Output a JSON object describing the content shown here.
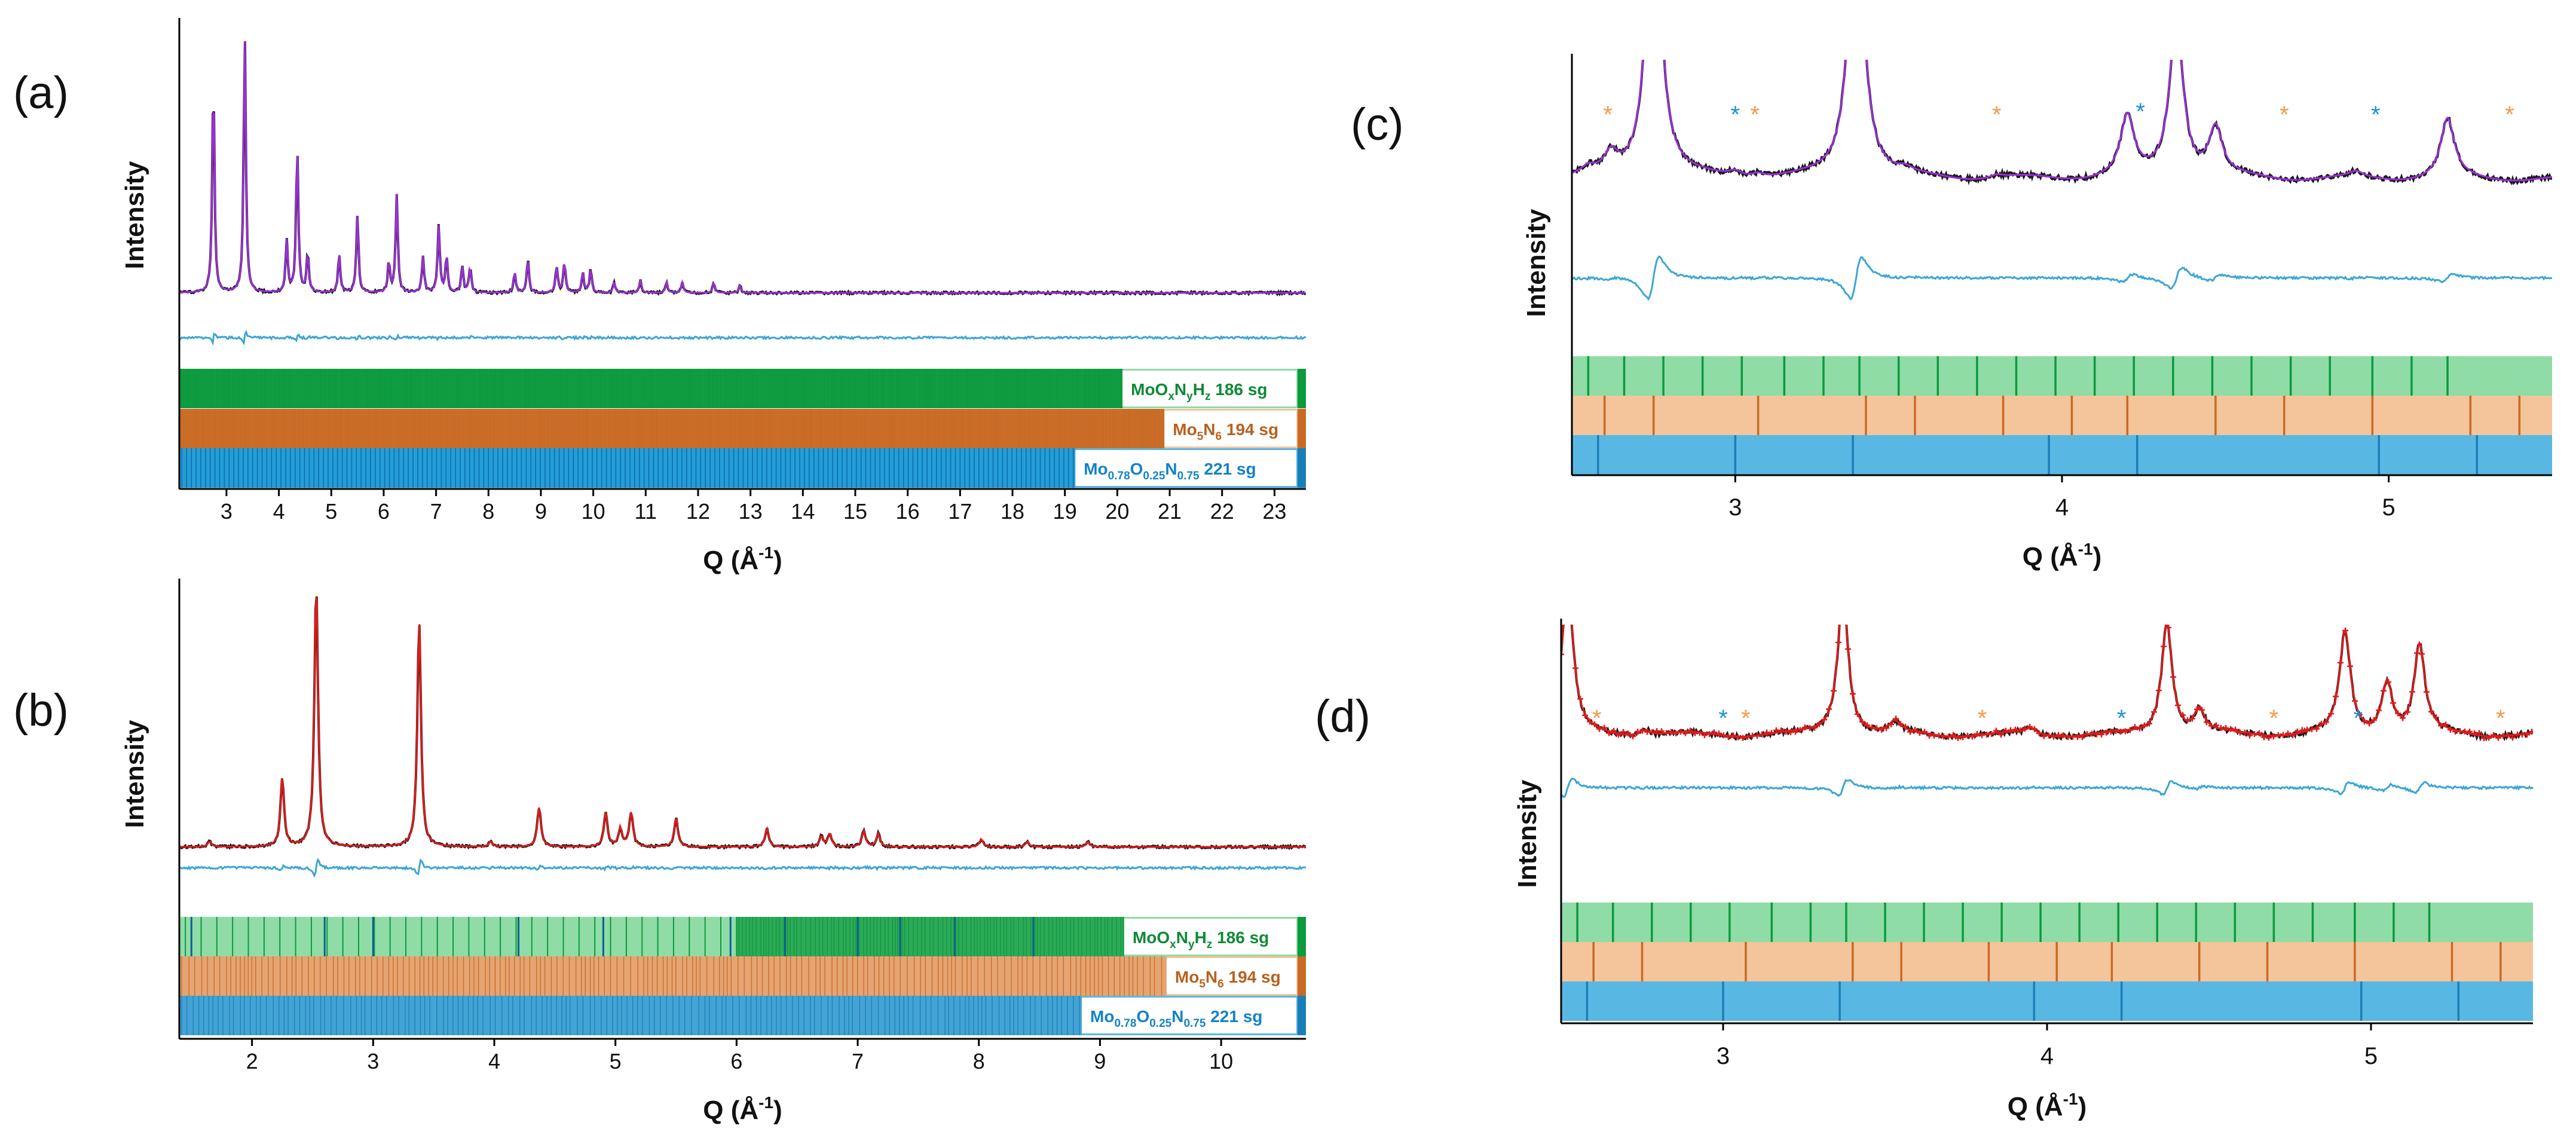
{
  "colors": {
    "black": "#1a1a1a",
    "purple": "#9b30d9",
    "red": "#e01b1b",
    "diff": "#3ba6d4",
    "green_light": "#8fdca6",
    "green_dark": "#0c9a3d",
    "green_text": "#0c8a36",
    "orange_light": "#f4c49b",
    "orange_dark": "#c86a24",
    "orange_text": "#b8601e",
    "blue_light": "#59b7e3",
    "blue_dark": "#1a7fb8",
    "blue_text": "#1482c8",
    "star_orange": "#f29a4a",
    "star_blue": "#1c8fd1"
  },
  "panels": [
    {
      "label": "(a)",
      "ylabel": "Intensity",
      "xlabel": "Q (Å",
      "xlabel_sup": "-1",
      "xlabel_end": ")",
      "xlim": [
        2.1,
        23.6
      ],
      "xticks": [
        "3",
        "4",
        "5",
        "6",
        "7",
        "8",
        "9",
        "10",
        "11",
        "12",
        "13",
        "14",
        "15",
        "16",
        "17",
        "18",
        "19",
        "20",
        "21",
        "22",
        "23"
      ],
      "phases": [
        {
          "name": "MoO",
          "sub1": "x",
          "mid1": "N",
          "sub2": "y",
          "mid2": "H",
          "sub3": "z",
          "tail": " 186 sg",
          "extent": 20.1
        },
        {
          "name": "Mo",
          "sub1": "5",
          "mid1": "N",
          "sub2": "6",
          "mid2": "",
          "sub3": "",
          "tail": " 194 sg",
          "extent": 20.9
        },
        {
          "name": "Mo",
          "sub1": "0.78",
          "mid1": "O",
          "sub2": "0.25",
          "mid2": "N",
          "sub3": "0.75",
          "tail": " 221 sg",
          "extent": 19.2
        }
      ]
    },
    {
      "label": "(b)",
      "ylabel": "Intensity",
      "xlabel": "Q (Å",
      "xlabel_sup": "-1",
      "xlabel_end": ")",
      "xlim": [
        1.4,
        10.7
      ],
      "xticks": [
        "2",
        "3",
        "4",
        "5",
        "6",
        "7",
        "8",
        "9",
        "10"
      ],
      "phases": [
        {
          "name": "MoO",
          "sub1": "x",
          "mid1": "N",
          "sub2": "y",
          "mid2": "H",
          "sub3": "z",
          "tail": " 186 sg",
          "extent": 9.2
        },
        {
          "name": "Mo",
          "sub1": "5",
          "mid1": "N",
          "sub2": "6",
          "mid2": "",
          "sub3": "",
          "tail": " 194 sg",
          "extent": 9.55
        },
        {
          "name": "Mo",
          "sub1": "0.78",
          "mid1": "O",
          "sub2": "0.25",
          "mid2": "N",
          "sub3": "0.75",
          "tail": " 221 sg",
          "extent": 8.85
        }
      ]
    },
    {
      "label": "(c)",
      "ylabel": "Intensity",
      "xlabel": "Q (Å",
      "xlabel_sup": "-1",
      "xlabel_end": ")",
      "xlim": [
        2.5,
        5.5
      ],
      "xticks": [
        "3",
        "4",
        "5"
      ]
    },
    {
      "label": "(d)",
      "ylabel": "Intensity",
      "xlabel": "Q (Å",
      "xlabel_sup": "-1",
      "xlabel_end": ")",
      "xlim": [
        2.5,
        5.5
      ],
      "xticks": [
        "3",
        "4",
        "5"
      ]
    }
  ],
  "chart_data": [
    {
      "type": "line",
      "panel": "(a)",
      "series": [
        {
          "name": "observed",
          "color": "black"
        },
        {
          "name": "calculated",
          "color": "purple"
        },
        {
          "name": "difference",
          "color": "diff"
        }
      ],
      "peaks": [
        [
          2.75,
          0.84
        ],
        [
          3.35,
          1.0
        ],
        [
          4.15,
          0.2
        ],
        [
          4.35,
          0.57
        ],
        [
          4.55,
          0.15
        ],
        [
          5.15,
          0.15
        ],
        [
          5.5,
          0.3
        ],
        [
          6.1,
          0.12
        ],
        [
          6.25,
          0.38
        ],
        [
          6.75,
          0.14
        ],
        [
          7.05,
          0.26
        ],
        [
          7.2,
          0.14
        ],
        [
          7.5,
          0.1
        ],
        [
          7.65,
          0.1
        ],
        [
          8.5,
          0.08
        ],
        [
          8.75,
          0.13
        ],
        [
          9.3,
          0.1
        ],
        [
          9.45,
          0.12
        ],
        [
          9.8,
          0.08
        ],
        [
          9.95,
          0.09
        ],
        [
          10.4,
          0.04
        ],
        [
          10.9,
          0.05
        ],
        [
          11.4,
          0.04
        ],
        [
          11.7,
          0.04
        ],
        [
          12.3,
          0.04
        ],
        [
          12.8,
          0.03
        ]
      ],
      "reflections": {
        "MoOxNyHz": [],
        "Mo5N6": [],
        "Mo0.78O0.25N0.75": [
          3.0,
          3.5,
          4.2,
          4.9,
          5.95,
          6.4,
          7.0,
          7.35,
          7.8,
          8.45,
          8.95,
          9.4,
          9.85,
          10.3,
          10.75
        ]
      }
    },
    {
      "type": "line",
      "panel": "(b)",
      "series": [
        {
          "name": "observed",
          "color": "black"
        },
        {
          "name": "calculated",
          "color": "red"
        },
        {
          "name": "difference",
          "color": "diff"
        }
      ],
      "peaks": [
        [
          1.65,
          0.02
        ],
        [
          2.25,
          0.26
        ],
        [
          2.53,
          1.0
        ],
        [
          3.38,
          0.86
        ],
        [
          3.97,
          0.02
        ],
        [
          4.37,
          0.15
        ],
        [
          4.92,
          0.13
        ],
        [
          5.04,
          0.07
        ],
        [
          5.13,
          0.13
        ],
        [
          5.5,
          0.11
        ],
        [
          6.25,
          0.07
        ],
        [
          6.7,
          0.04
        ],
        [
          6.77,
          0.05
        ],
        [
          7.05,
          0.06
        ],
        [
          7.17,
          0.05
        ],
        [
          8.02,
          0.03
        ],
        [
          8.4,
          0.02
        ],
        [
          8.9,
          0.02
        ]
      ],
      "reflections": {
        "Mo0.78O0.25N0.75": [
          1.5,
          2.6,
          3.0,
          4.2,
          4.9,
          5.95,
          6.4,
          7.0,
          7.35,
          7.8,
          8.45
        ]
      }
    },
    {
      "type": "line",
      "panel": "(c)",
      "series": [
        {
          "name": "observed",
          "color": "black"
        },
        {
          "name": "calculated",
          "color": "purple"
        },
        {
          "name": "difference",
          "color": "diff"
        }
      ],
      "peaks": [
        [
          2.55,
          0.06
        ],
        [
          2.62,
          0.18
        ],
        [
          2.75,
          3.0
        ],
        [
          3.0,
          0.05
        ],
        [
          3.07,
          0.04
        ],
        [
          3.37,
          3.0
        ],
        [
          3.52,
          0.04
        ],
        [
          3.8,
          0.03
        ],
        [
          4.2,
          0.55
        ],
        [
          4.35,
          1.5
        ],
        [
          4.47,
          0.45
        ],
        [
          4.9,
          0.05
        ],
        [
          5.18,
          0.55
        ]
      ],
      "star_orange": [
        2.61,
        3.06,
        3.8,
        4.68,
        5.37
      ],
      "star_blue": [
        3.0,
        4.24,
        4.96
      ],
      "reflections": {
        "green": [
          2.55,
          2.66,
          2.78,
          2.9,
          3.02,
          3.15,
          3.27,
          3.38,
          3.5,
          3.62,
          3.74,
          3.86,
          3.98,
          4.1,
          4.22,
          4.34,
          4.46,
          4.58,
          4.7,
          4.82,
          4.95,
          5.07,
          5.18
        ],
        "orange": [
          2.6,
          2.75,
          3.07,
          3.4,
          3.55,
          3.82,
          4.03,
          4.2,
          4.47,
          4.68,
          4.95,
          5.25,
          5.4
        ],
        "blue": [
          2.58,
          3.0,
          3.36,
          3.96,
          4.23,
          4.97,
          5.27
        ]
      }
    },
    {
      "type": "line",
      "panel": "(d)",
      "series": [
        {
          "name": "observed",
          "color": "black"
        },
        {
          "name": "calculated",
          "color": "red"
        },
        {
          "name": "difference",
          "color": "diff"
        }
      ],
      "peaks": [
        [
          2.52,
          1.3
        ],
        [
          2.76,
          0.05
        ],
        [
          3.37,
          1.2
        ],
        [
          3.53,
          0.09
        ],
        [
          3.95,
          0.05
        ],
        [
          4.37,
          0.95
        ],
        [
          4.47,
          0.2
        ],
        [
          4.92,
          0.85
        ],
        [
          5.05,
          0.44
        ],
        [
          5.15,
          0.74
        ]
      ],
      "star_orange": [
        2.61,
        3.07,
        3.8,
        4.7,
        5.4
      ],
      "star_blue": [
        3.0,
        4.23,
        4.96
      ],
      "reflections": {
        "green": [
          2.55,
          2.66,
          2.78,
          2.9,
          3.02,
          3.15,
          3.27,
          3.38,
          3.5,
          3.62,
          3.74,
          3.86,
          3.98,
          4.1,
          4.22,
          4.34,
          4.46,
          4.58,
          4.7,
          4.82,
          4.95,
          5.07,
          5.18
        ],
        "orange": [
          2.6,
          2.75,
          3.07,
          3.4,
          3.55,
          3.82,
          4.03,
          4.2,
          4.47,
          4.68,
          4.95,
          5.25,
          5.4
        ],
        "blue": [
          2.58,
          3.0,
          3.36,
          3.96,
          4.23,
          4.97,
          5.27
        ]
      }
    }
  ]
}
